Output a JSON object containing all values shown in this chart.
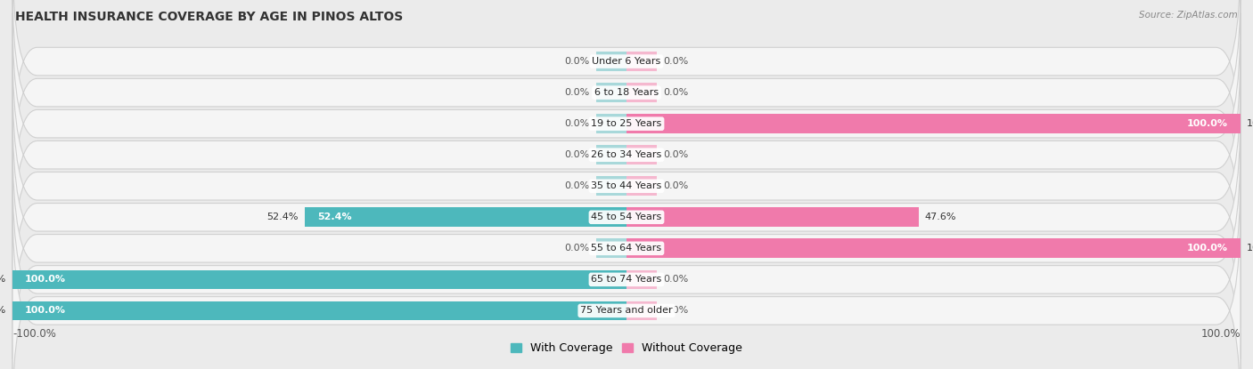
{
  "title": "HEALTH INSURANCE COVERAGE BY AGE IN PINOS ALTOS",
  "source": "Source: ZipAtlas.com",
  "categories": [
    "Under 6 Years",
    "6 to 18 Years",
    "19 to 25 Years",
    "26 to 34 Years",
    "35 to 44 Years",
    "45 to 54 Years",
    "55 to 64 Years",
    "65 to 74 Years",
    "75 Years and older"
  ],
  "with_coverage": [
    0.0,
    0.0,
    0.0,
    0.0,
    0.0,
    52.4,
    0.0,
    100.0,
    100.0
  ],
  "without_coverage": [
    0.0,
    0.0,
    100.0,
    0.0,
    0.0,
    47.6,
    100.0,
    0.0,
    0.0
  ],
  "color_with": "#4db8bc",
  "color_without": "#f07aab",
  "color_with_light": "#a8d8da",
  "color_without_light": "#f5b8cf",
  "background_color": "#ebebeb",
  "bar_bg_color": "#f5f5f5",
  "title_fontsize": 10,
  "label_fontsize": 8.0,
  "bar_height": 0.62,
  "stub_size": 5.0,
  "legend_with": "With Coverage",
  "legend_without": "Without Coverage"
}
